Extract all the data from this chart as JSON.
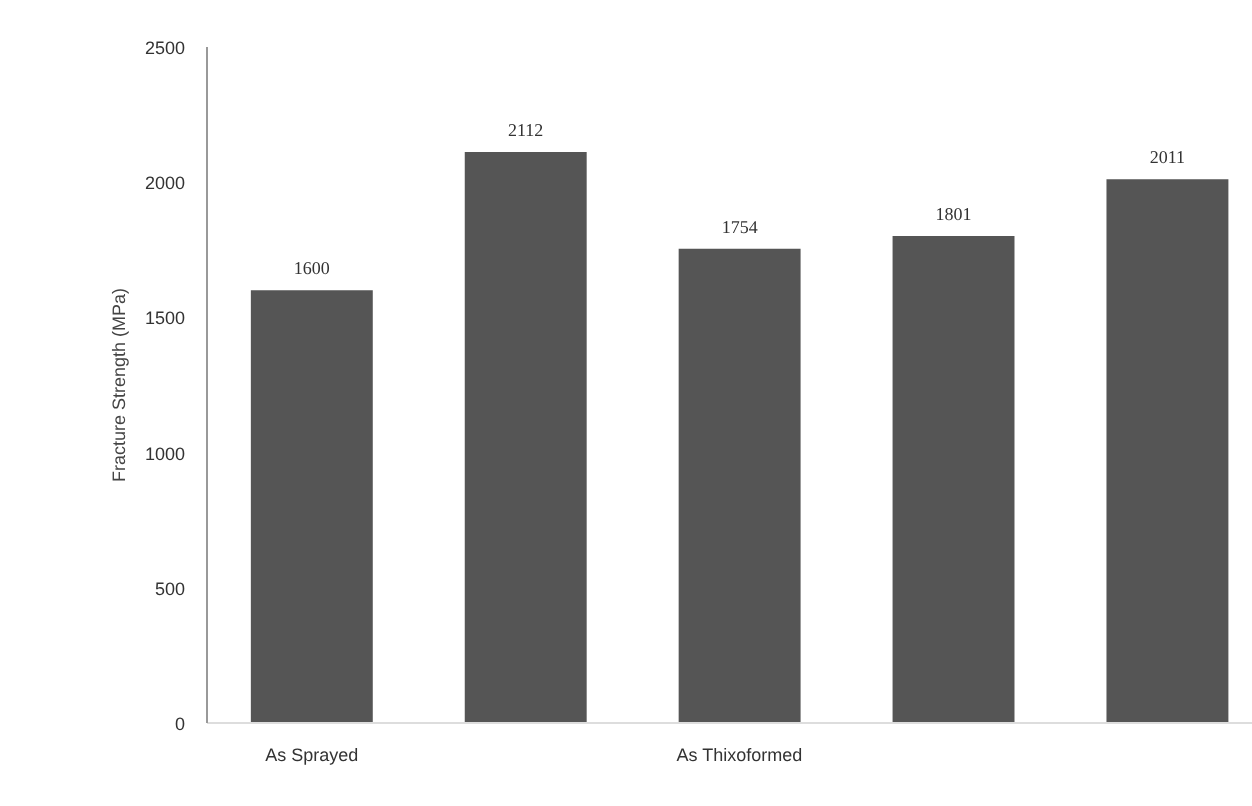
{
  "chart_data": {
    "type": "bar",
    "ylabel": "Fracture Strength (MPa)",
    "categories": [
      "As Sprayed",
      null,
      "As Thixoformed",
      null,
      null
    ],
    "values": [
      1600,
      2112,
      1754,
      1801,
      2011
    ],
    "color": "#555555",
    "ylim": [
      0,
      2500
    ],
    "yticks": [
      0,
      500,
      1000,
      1500,
      2000,
      2500
    ],
    "grid": false,
    "data_labels": true
  }
}
